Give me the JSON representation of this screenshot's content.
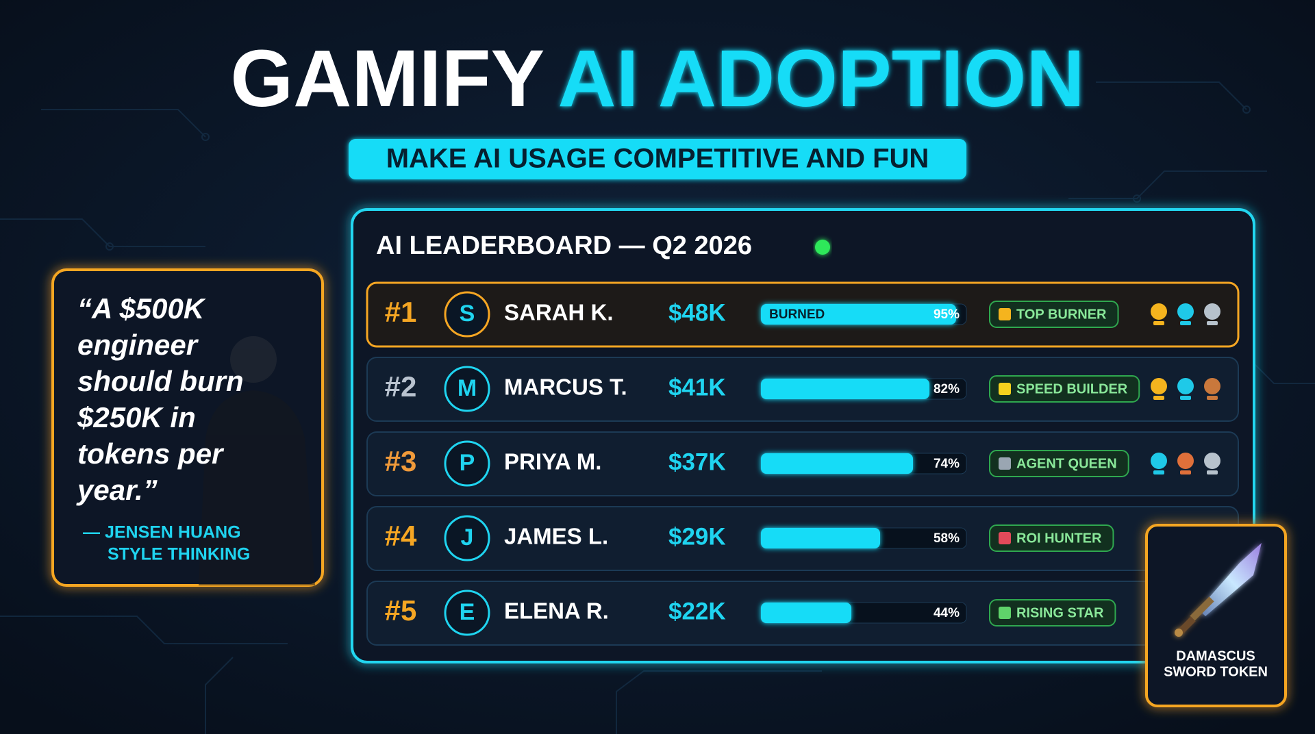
{
  "title": {
    "main": "GAMIFY",
    "accent": "AI ADOPTION"
  },
  "subtitle": "MAKE AI USAGE COMPETITIVE AND FUN",
  "leaderboard": {
    "title": "AI LEADERBOARD — Q2 2026",
    "rows": [
      {
        "rank": "#1",
        "initial": "S",
        "name": "SARAH K.",
        "amount": "$48K",
        "bar_label": "BURNED",
        "progress": 95,
        "progress_label": "95%",
        "badge": "TOP BURNER"
      },
      {
        "rank": "#2",
        "initial": "M",
        "name": "MARCUS T.",
        "amount": "$41K",
        "progress": 82,
        "progress_label": "82%",
        "badge": "SPEED BUILDER"
      },
      {
        "rank": "#3",
        "initial": "P",
        "name": "PRIYA M.",
        "amount": "$37K",
        "progress": 74,
        "progress_label": "74%",
        "badge": "AGENT QUEEN"
      },
      {
        "rank": "#4",
        "initial": "J",
        "name": "JAMES L.",
        "amount": "$29K",
        "progress": 58,
        "progress_label": "58%",
        "badge": "ROI HUNTER"
      },
      {
        "rank": "#5",
        "initial": "E",
        "name": "ELENA R.",
        "amount": "$22K",
        "progress": 44,
        "progress_label": "44%",
        "badge": "RISING STAR"
      }
    ]
  },
  "quote": {
    "lines": [
      "“A $500K",
      "engineer",
      "should burn",
      "$250K in",
      "tokens per",
      "year.”"
    ],
    "attribution": [
      "— JENSEN HUANG",
      "STYLE THINKING"
    ]
  },
  "token": {
    "lines": [
      "DAMASCUS",
      "SWORD TOKEN"
    ]
  }
}
